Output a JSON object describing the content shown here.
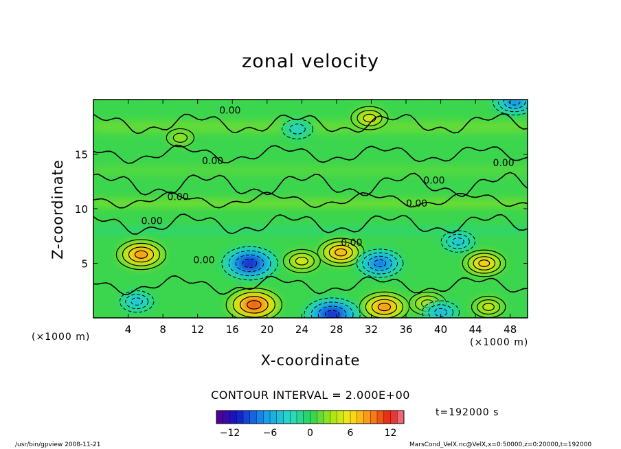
{
  "chart_data": {
    "type": "heatmap",
    "title": "zonal velocity",
    "xlabel": "X-coordinate",
    "ylabel": "Z-coordinate",
    "x_unit": "(×1000 m)",
    "x_ticks": [
      4,
      8,
      12,
      16,
      20,
      24,
      28,
      32,
      36,
      40,
      44,
      48
    ],
    "y_ticks": [
      5,
      10,
      15
    ],
    "xlim": [
      0,
      50
    ],
    "ylim": [
      0,
      20
    ],
    "contour_interval": "CONTOUR INTERVAL = 2.000E+00",
    "contour_labels": [
      "0.00",
      "0.00",
      "0.00",
      "0.00",
      "0.00",
      "0.00",
      "0.00",
      "0.00",
      "0.00"
    ],
    "colorbar": {
      "min": -14,
      "max": 14,
      "tick_labels": [
        "−12",
        "−6",
        "0",
        "6",
        "12"
      ],
      "tick_values": [
        -12,
        -6,
        0,
        6,
        12
      ]
    },
    "features": [
      {
        "x": 5.5,
        "z": 5.8,
        "value": 10
      },
      {
        "x": 18.5,
        "z": 1.2,
        "value": 12
      },
      {
        "x": 28.5,
        "z": 6.0,
        "value": 9
      },
      {
        "x": 33.5,
        "z": 1.0,
        "value": 10
      },
      {
        "x": 45.0,
        "z": 5.0,
        "value": 8
      },
      {
        "x": 24.0,
        "z": 5.2,
        "value": 6
      },
      {
        "x": 31.8,
        "z": 18.3,
        "value": 6
      },
      {
        "x": 38.5,
        "z": 1.3,
        "value": 6
      },
      {
        "x": 45.5,
        "z": 1.0,
        "value": 5
      },
      {
        "x": 10.0,
        "z": 16.5,
        "value": 3
      },
      {
        "x": 18.0,
        "z": 5.0,
        "value": -12
      },
      {
        "x": 27.5,
        "z": 0.3,
        "value": -12
      },
      {
        "x": 33.0,
        "z": 5.0,
        "value": -9
      },
      {
        "x": 48.5,
        "z": 19.8,
        "value": -8
      },
      {
        "x": 40.0,
        "z": 0.5,
        "value": -6
      },
      {
        "x": 5.0,
        "z": 1.5,
        "value": -5
      },
      {
        "x": 42.0,
        "z": 7.0,
        "value": -5
      },
      {
        "x": 23.5,
        "z": 17.3,
        "value": -4
      }
    ]
  },
  "time": "t=192000 s",
  "footer_left": "/usr/bin/gpview  2008-11-21",
  "footer_right": "MarsCond_VelX.nc@VelX,x=0:50000,z=0:20000,t=192000"
}
